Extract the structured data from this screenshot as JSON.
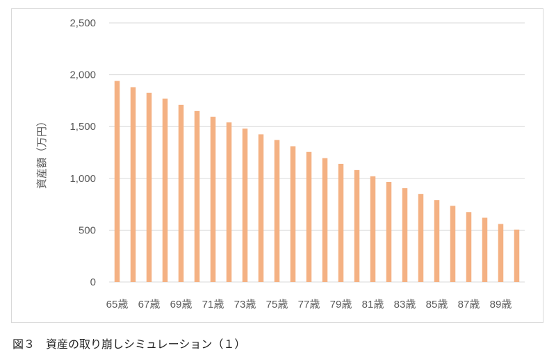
{
  "caption": "図３　資産の取り崩しシミュレーション（１）",
  "chart_data": {
    "type": "bar",
    "categories": [
      "65歳",
      "66歳",
      "67歳",
      "68歳",
      "69歳",
      "70歳",
      "71歳",
      "72歳",
      "73歳",
      "74歳",
      "75歳",
      "76歳",
      "77歳",
      "78歳",
      "79歳",
      "80歳",
      "81歳",
      "82歳",
      "83歳",
      "84歳",
      "85歳",
      "86歳",
      "87歳",
      "88歳",
      "89歳",
      "90歳"
    ],
    "x_tick_labels_shown": [
      "65歳",
      "67歳",
      "69歳",
      "71歳",
      "73歳",
      "75歳",
      "77歳",
      "79歳",
      "81歳",
      "83歳",
      "85歳",
      "87歳",
      "89歳"
    ],
    "values": [
      1940,
      1880,
      1825,
      1770,
      1710,
      1650,
      1595,
      1540,
      1480,
      1425,
      1370,
      1310,
      1255,
      1195,
      1140,
      1080,
      1020,
      965,
      905,
      850,
      790,
      735,
      675,
      620,
      560,
      505
    ],
    "ylabel": "資産額（万円）",
    "ylim": [
      0,
      2500
    ],
    "yticks": [
      0,
      500,
      1000,
      1500,
      2000,
      2500
    ],
    "ytick_labels": [
      "0",
      "500",
      "1,000",
      "1,500",
      "2,000",
      "2,500"
    ],
    "grid": true,
    "bar_color": "#F4B183"
  }
}
